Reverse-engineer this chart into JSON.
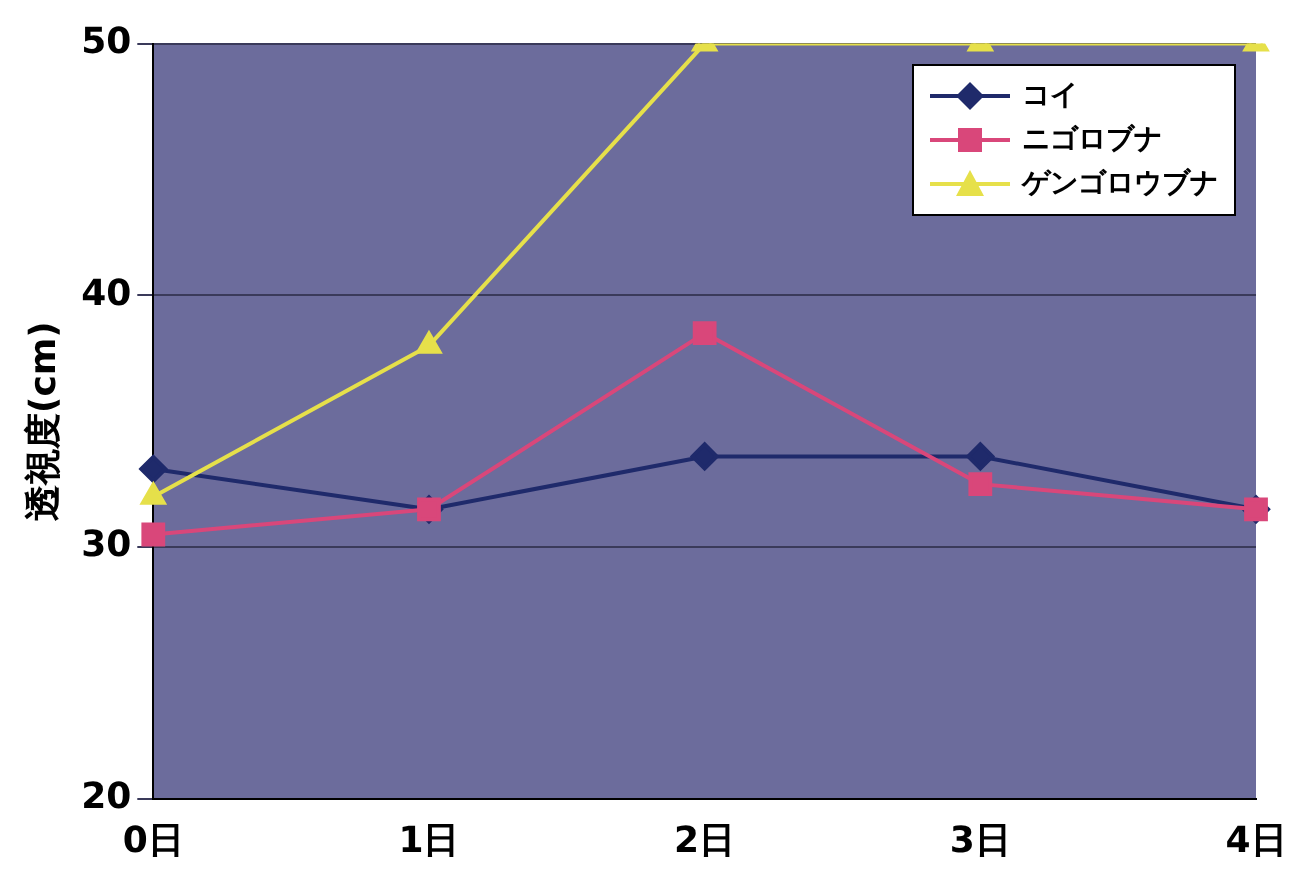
{
  "chart_data": {
    "type": "line",
    "ylabel": "透視度(cm)",
    "categories": [
      "0日",
      "1日",
      "2日",
      "3日",
      "4日"
    ],
    "series": [
      {
        "name": "コイ",
        "color": "#1f2a6b",
        "values": [
          33.1,
          31.5,
          33.6,
          33.6,
          31.5
        ],
        "marker": "diamond"
      },
      {
        "name": "ニゴロブナ",
        "color": "#d9477a",
        "values": [
          30.5,
          31.5,
          38.5,
          32.5,
          31.5
        ],
        "marker": "square"
      },
      {
        "name": "ゲンゴロウブナ",
        "color": "#e6e04a",
        "values": [
          32,
          38,
          50,
          50,
          50
        ],
        "marker": "triangle"
      }
    ],
    "ylim": [
      20,
      50
    ],
    "yticks": [
      20,
      30,
      40,
      50
    ],
    "grid": "y",
    "legend": "top right"
  }
}
